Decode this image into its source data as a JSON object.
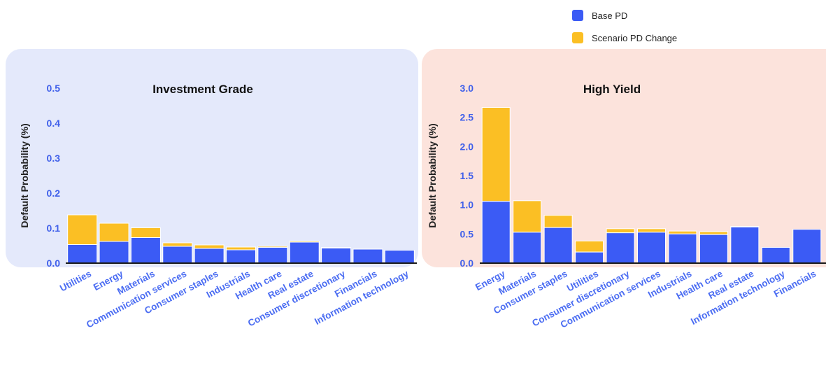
{
  "legend": [
    {
      "label": "Base PD",
      "color": "#3b5bf5"
    },
    {
      "label": "Scenario PD Change",
      "color": "#fbbf24"
    }
  ],
  "colors": {
    "base": "#3b5bf5",
    "scenario": "#fbbf24",
    "ig_panel_bg": "#e4e9fb",
    "hy_panel_bg": "#fce3dc",
    "tick_text": "#4060ea",
    "category_text": "#4a6cf2"
  },
  "chart_data": [
    {
      "type": "bar",
      "stacked": true,
      "title": "Investment Grade",
      "ylabel": "Default Probability (%)",
      "ylim": [
        0,
        0.5
      ],
      "yticks": [
        "0.0",
        "0.1",
        "0.2",
        "0.3",
        "0.4",
        "0.5"
      ],
      "grid": false,
      "categories": [
        "Utilities",
        "Energy",
        "Materials",
        "Communication services",
        "Consumer staples",
        "Industrials",
        "Health care",
        "Real estate",
        "Consumer discretionary",
        "Financials",
        "Information technology"
      ],
      "series": [
        {
          "name": "Base PD",
          "values": [
            0.053,
            0.062,
            0.073,
            0.048,
            0.042,
            0.038,
            0.045,
            0.06,
            0.043,
            0.04,
            0.037
          ]
        },
        {
          "name": "Scenario PD Change",
          "values": [
            0.085,
            0.052,
            0.028,
            0.01,
            0.01,
            0.008,
            0.003,
            0.003,
            0.002,
            0.0,
            0.0
          ]
        }
      ]
    },
    {
      "type": "bar",
      "stacked": true,
      "title": "High Yield",
      "ylabel": "Default Probability (%)",
      "ylim": [
        0,
        3.0
      ],
      "yticks": [
        "0.0",
        "0.5",
        "1.0",
        "1.5",
        "2.0",
        "2.5",
        "3.0"
      ],
      "grid": false,
      "categories": [
        "Energy",
        "Materials",
        "Consumer staples",
        "Utilities",
        "Consumer discretionary",
        "Communication services",
        "Industrials",
        "Health care",
        "Real estate",
        "Information technology",
        "Financials"
      ],
      "series": [
        {
          "name": "Base PD",
          "values": [
            1.06,
            0.53,
            0.61,
            0.19,
            0.52,
            0.53,
            0.5,
            0.49,
            0.62,
            0.27,
            0.58
          ]
        },
        {
          "name": "Scenario PD Change",
          "values": [
            1.61,
            0.54,
            0.21,
            0.19,
            0.07,
            0.06,
            0.05,
            0.05,
            0.01,
            0.0,
            0.0
          ]
        }
      ]
    }
  ]
}
